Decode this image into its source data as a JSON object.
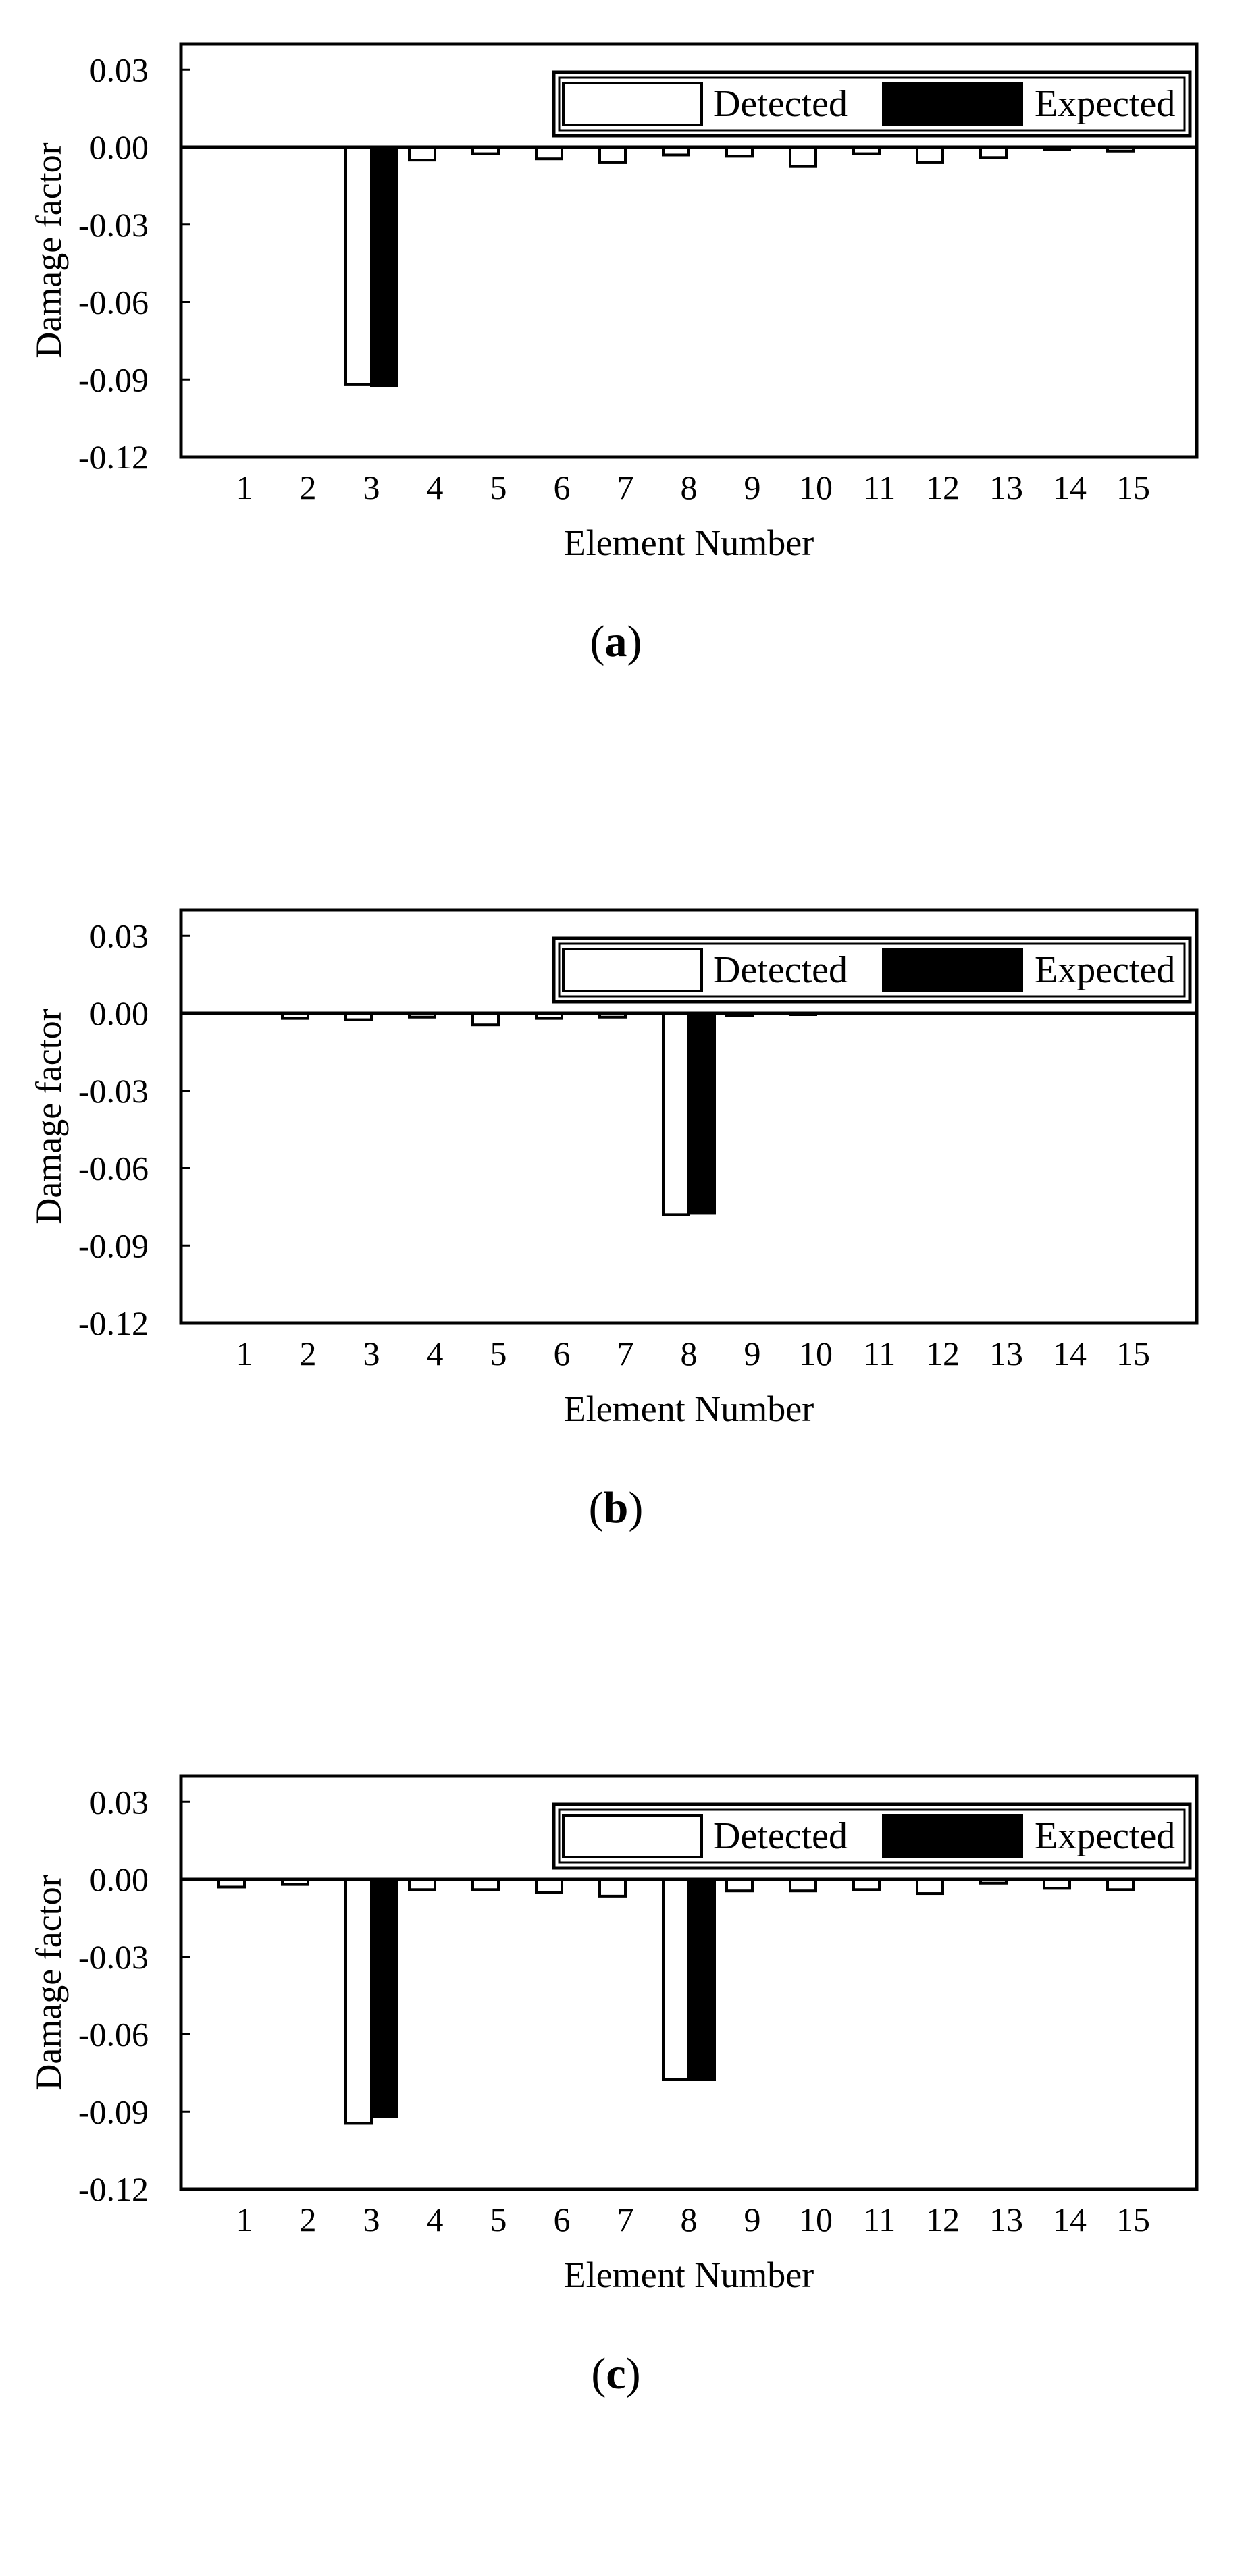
{
  "chart_data": [
    {
      "type": "bar",
      "panel_label": "(a)",
      "panel_letter": "a",
      "xlabel": "Element Number",
      "ylabel": "Damage factor",
      "ylim": [
        -0.12,
        0.04
      ],
      "yticks": [
        "0.03",
        "0.00",
        "-0.03",
        "-0.06",
        "-0.09",
        "-0.12"
      ],
      "categories": [
        "1",
        "2",
        "3",
        "4",
        "5",
        "6",
        "7",
        "8",
        "9",
        "10",
        "11",
        "12",
        "13",
        "14",
        "15"
      ],
      "legend_position": "top-right",
      "series": [
        {
          "name": "Detected",
          "values": [
            0,
            0,
            -0.092,
            -0.005,
            -0.0025,
            -0.0045,
            -0.006,
            -0.003,
            -0.0035,
            -0.0075,
            -0.0025,
            -0.006,
            -0.004,
            -0.0008,
            -0.0015
          ]
        },
        {
          "name": "Expected",
          "values": [
            0,
            0,
            -0.0925,
            0,
            0,
            0,
            0,
            0,
            0,
            0,
            0,
            0,
            0,
            0,
            0
          ]
        }
      ]
    },
    {
      "type": "bar",
      "panel_label": "(b)",
      "panel_letter": "b",
      "xlabel": "Element Number",
      "ylabel": "Damage factor",
      "ylim": [
        -0.12,
        0.04
      ],
      "yticks": [
        "0.03",
        "0.00",
        "-0.03",
        "-0.06",
        "-0.09",
        "-0.12"
      ],
      "categories": [
        "1",
        "2",
        "3",
        "4",
        "5",
        "6",
        "7",
        "8",
        "9",
        "10",
        "11",
        "12",
        "13",
        "14",
        "15"
      ],
      "legend_position": "top-right",
      "series": [
        {
          "name": "Detected",
          "values": [
            0,
            -0.002,
            -0.0025,
            -0.0015,
            -0.0045,
            -0.002,
            -0.0015,
            -0.078,
            -0.0008,
            -0.0005,
            0,
            0,
            0,
            0,
            0
          ]
        },
        {
          "name": "Expected",
          "values": [
            0,
            0,
            0,
            0,
            0,
            0,
            0,
            -0.0775,
            0,
            0,
            0,
            0,
            0,
            0,
            0
          ]
        }
      ]
    },
    {
      "type": "bar",
      "panel_label": "(c)",
      "panel_letter": "c",
      "xlabel": "Element Number",
      "ylabel": "Damage factor",
      "ylim": [
        -0.12,
        0.04
      ],
      "yticks": [
        "0.03",
        "0.00",
        "-0.03",
        "-0.06",
        "-0.09",
        "-0.12"
      ],
      "categories": [
        "1",
        "2",
        "3",
        "4",
        "5",
        "6",
        "7",
        "8",
        "9",
        "10",
        "11",
        "12",
        "13",
        "14",
        "15"
      ],
      "legend_position": "top-right",
      "series": [
        {
          "name": "Detected",
          "values": [
            -0.003,
            -0.002,
            -0.0945,
            -0.004,
            -0.004,
            -0.005,
            -0.0065,
            -0.0775,
            -0.0045,
            -0.0045,
            -0.004,
            -0.0055,
            -0.0015,
            -0.0035,
            -0.004
          ]
        },
        {
          "name": "Expected",
          "values": [
            0,
            0,
            -0.092,
            0,
            0,
            0,
            0,
            -0.0775,
            0,
            0,
            0,
            0,
            0,
            0,
            0
          ]
        }
      ]
    }
  ]
}
